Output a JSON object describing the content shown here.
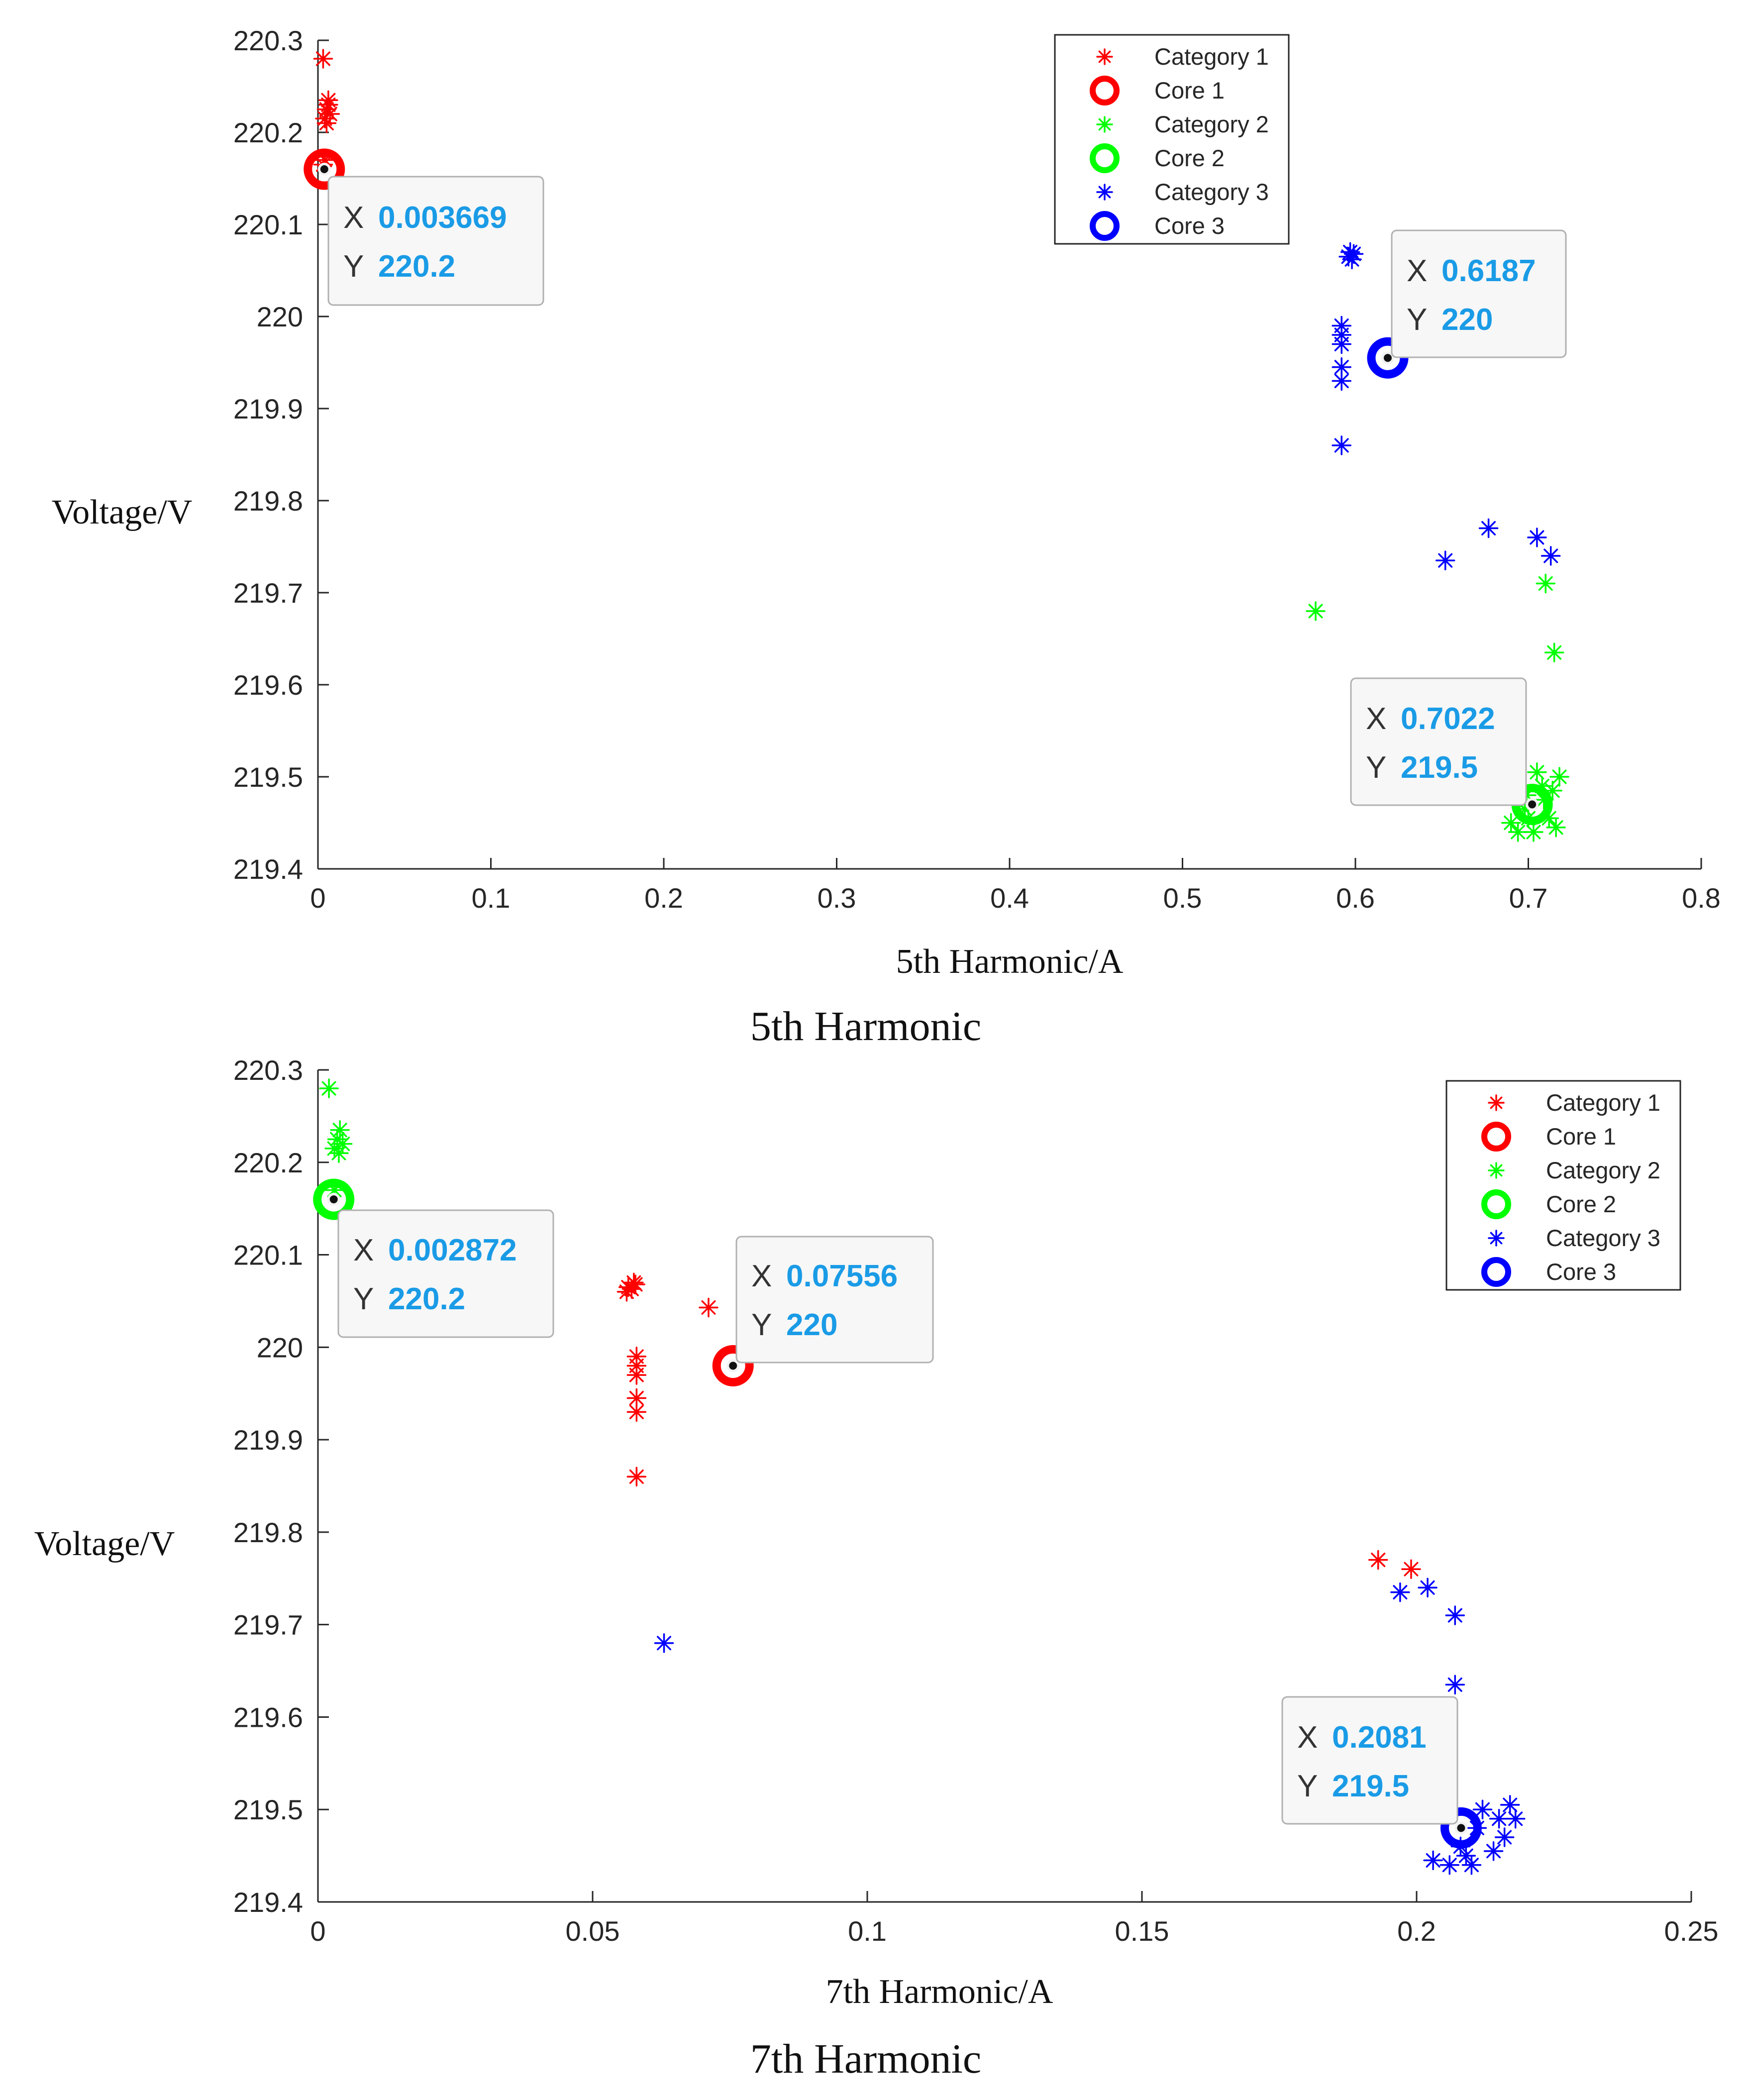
{
  "chart_data": [
    {
      "type": "scatter",
      "title": "5th Harmonic",
      "xlabel": "5th Harmonic/A",
      "ylabel": "Voltage/V",
      "xlim": [
        0,
        0.8
      ],
      "ylim": [
        219.4,
        220.3
      ],
      "xticks": [
        "0",
        "0.1",
        "0.2",
        "0.3",
        "0.4",
        "0.5",
        "0.6",
        "0.7",
        "0.8"
      ],
      "yticks": [
        "219.4",
        "219.5",
        "219.6",
        "219.7",
        "219.8",
        "219.9",
        "220",
        "220.1",
        "220.2",
        "220.3"
      ],
      "legend_position": "top-right",
      "colors": {
        "category_1": "#ff0000",
        "category_2": "#00ff00",
        "category_3": "#0000ff"
      },
      "series": [
        {
          "name": "Category 1",
          "marker": "asterisk",
          "color": "#ff0000",
          "points": [
            [
              0.003,
              220.28
            ],
            [
              0.006,
              220.235
            ],
            [
              0.005,
              220.225
            ],
            [
              0.007,
              220.22
            ],
            [
              0.004,
              220.215
            ],
            [
              0.006,
              220.23
            ],
            [
              0.005,
              220.21
            ],
            [
              0.004,
              220.17
            ],
            [
              0.003,
              220.165
            ]
          ]
        },
        {
          "name": "Core 1",
          "marker": "circle",
          "color": "#ff0000",
          "points": [
            [
              0.003669,
              220.16
            ]
          ]
        },
        {
          "name": "Category 2",
          "marker": "asterisk",
          "color": "#00ff00",
          "points": [
            [
              0.577,
              219.68
            ],
            [
              0.71,
              219.71
            ],
            [
              0.715,
              219.635
            ],
            [
              0.718,
              219.5
            ],
            [
              0.705,
              219.505
            ],
            [
              0.708,
              219.49
            ],
            [
              0.695,
              219.47
            ],
            [
              0.7,
              219.455
            ],
            [
              0.69,
              219.45
            ],
            [
              0.712,
              219.455
            ],
            [
              0.716,
              219.445
            ],
            [
              0.703,
              219.44
            ],
            [
              0.698,
              219.465
            ],
            [
              0.694,
              219.44
            ],
            [
              0.709,
              219.475
            ],
            [
              0.714,
              219.485
            ],
            [
              0.699,
              219.48
            ]
          ]
        },
        {
          "name": "Core 2",
          "marker": "circle",
          "color": "#00ff00",
          "points": [
            [
              0.7022,
              219.47
            ]
          ]
        },
        {
          "name": "Category 3",
          "marker": "asterisk",
          "color": "#0000ff",
          "points": [
            [
              0.597,
              220.07
            ],
            [
              0.598,
              220.062
            ],
            [
              0.596,
              220.065
            ],
            [
              0.599,
              220.068
            ],
            [
              0.592,
              219.99
            ],
            [
              0.592,
              219.98
            ],
            [
              0.592,
              219.97
            ],
            [
              0.592,
              219.945
            ],
            [
              0.592,
              219.93
            ],
            [
              0.592,
              219.86
            ],
            [
              0.652,
              219.735
            ],
            [
              0.677,
              219.77
            ],
            [
              0.705,
              219.76
            ],
            [
              0.713,
              219.74
            ]
          ]
        },
        {
          "name": "Core 3",
          "marker": "circle",
          "color": "#0000ff",
          "points": [
            [
              0.6187,
              219.955
            ]
          ]
        }
      ],
      "datatips": [
        {
          "x_key": "X",
          "x_value": "0.003669",
          "y_key": "Y",
          "y_value": "220.2"
        },
        {
          "x_key": "X",
          "x_value": "0.6187",
          "y_key": "Y",
          "y_value": "220"
        },
        {
          "x_key": "X",
          "x_value": "0.7022",
          "y_key": "Y",
          "y_value": "219.5"
        }
      ]
    },
    {
      "type": "scatter",
      "title": "7th Harmonic",
      "xlabel": "7th Harmonic/A",
      "ylabel": "Voltage/V",
      "xlim": [
        0,
        0.25
      ],
      "ylim": [
        219.4,
        220.3
      ],
      "xticks": [
        "0",
        "0.05",
        "0.1",
        "0.15",
        "0.2",
        "0.25"
      ],
      "yticks": [
        "219.4",
        "219.5",
        "219.6",
        "219.7",
        "219.8",
        "219.9",
        "220",
        "220.1",
        "220.2",
        "220.3"
      ],
      "legend_position": "top-right",
      "colors": {
        "category_1": "#ff0000",
        "category_2": "#00ff00",
        "category_3": "#0000ff"
      },
      "series": [
        {
          "name": "Category 1",
          "marker": "asterisk",
          "color": "#ff0000",
          "points": [
            [
              0.0565,
              220.065
            ],
            [
              0.0575,
              220.07
            ],
            [
              0.0562,
              220.06
            ],
            [
              0.0578,
              220.068
            ],
            [
              0.0571,
              220.063
            ],
            [
              0.0711,
              220.043
            ],
            [
              0.058,
              219.99
            ],
            [
              0.058,
              219.98
            ],
            [
              0.058,
              219.97
            ],
            [
              0.058,
              219.945
            ],
            [
              0.058,
              219.93
            ],
            [
              0.058,
              219.86
            ],
            [
              0.193,
              219.77
            ],
            [
              0.199,
              219.76
            ]
          ]
        },
        {
          "name": "Core 1",
          "marker": "circle",
          "color": "#ff0000",
          "points": [
            [
              0.07556,
              219.98
            ]
          ]
        },
        {
          "name": "Category 2",
          "marker": "asterisk",
          "color": "#00ff00",
          "points": [
            [
              0.002,
              220.28
            ],
            [
              0.004,
              220.235
            ],
            [
              0.0035,
              220.225
            ],
            [
              0.0045,
              220.22
            ],
            [
              0.003,
              220.215
            ],
            [
              0.0038,
              220.21
            ],
            [
              0.003,
              220.17
            ]
          ]
        },
        {
          "name": "Core 2",
          "marker": "circle",
          "color": "#00ff00",
          "points": [
            [
              0.002872,
              220.16
            ]
          ]
        },
        {
          "name": "Category 3",
          "marker": "asterisk",
          "color": "#0000ff",
          "points": [
            [
              0.063,
              219.68
            ],
            [
              0.197,
              219.735
            ],
            [
              0.202,
              219.74
            ],
            [
              0.207,
              219.71
            ],
            [
              0.207,
              219.635
            ],
            [
              0.217,
              219.505
            ],
            [
              0.218,
              219.49
            ],
            [
              0.212,
              219.5
            ],
            [
              0.203,
              219.445
            ],
            [
              0.206,
              219.44
            ],
            [
              0.21,
              219.44
            ],
            [
              0.214,
              219.455
            ],
            [
              0.216,
              219.47
            ],
            [
              0.208,
              219.46
            ],
            [
              0.211,
              219.48
            ],
            [
              0.215,
              219.49
            ],
            [
              0.209,
              219.45
            ]
          ]
        },
        {
          "name": "Core 3",
          "marker": "circle",
          "color": "#0000ff",
          "points": [
            [
              0.2081,
              219.48
            ]
          ]
        }
      ],
      "datatips": [
        {
          "x_key": "X",
          "x_value": "0.002872",
          "y_key": "Y",
          "y_value": "220.2"
        },
        {
          "x_key": "X",
          "x_value": "0.07556",
          "y_key": "Y",
          "y_value": "220"
        },
        {
          "x_key": "X",
          "x_value": "0.2081",
          "y_key": "Y",
          "y_value": "219.5"
        }
      ]
    }
  ]
}
